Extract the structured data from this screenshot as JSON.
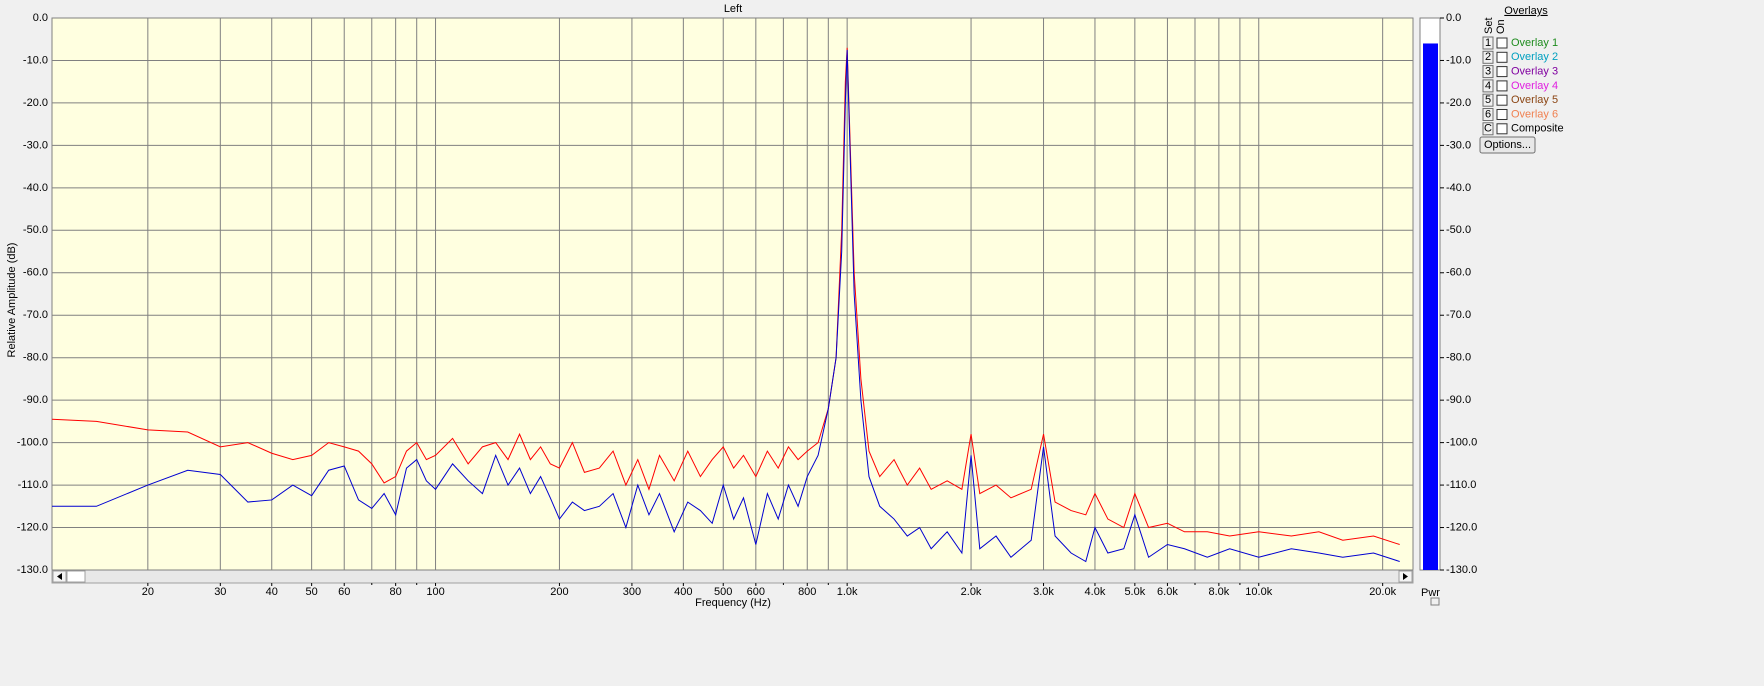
{
  "chart_data": {
    "type": "line",
    "title": "Left",
    "xlabel": "Frequency (Hz)",
    "ylabel": "Relative Amplitude (dB)",
    "xscale": "log",
    "grid": true,
    "xlim": [
      11.7,
      23700
    ],
    "ylim": [
      -130,
      0
    ],
    "yticks": [
      {
        "value": 0,
        "label": "0.0"
      },
      {
        "value": -10,
        "label": "-10.0"
      },
      {
        "value": -20,
        "label": "-20.0"
      },
      {
        "value": -30,
        "label": "-30.0"
      },
      {
        "value": -40,
        "label": "-40.0"
      },
      {
        "value": -50,
        "label": "-50.0"
      },
      {
        "value": -60,
        "label": "-60.0"
      },
      {
        "value": -70,
        "label": "-70.0"
      },
      {
        "value": -80,
        "label": "-80.0"
      },
      {
        "value": -90,
        "label": "-90.0"
      },
      {
        "value": -100,
        "label": "-100.0"
      },
      {
        "value": -110,
        "label": "-110.0"
      },
      {
        "value": -120,
        "label": "-120.0"
      },
      {
        "value": -130,
        "label": "-130.0"
      }
    ],
    "xticks": [
      20,
      30,
      40,
      50,
      60,
      80,
      100,
      200,
      300,
      400,
      500,
      600,
      800,
      {
        "value": 1000,
        "label": "1.0k"
      },
      {
        "value": 2000,
        "label": "2.0k"
      },
      {
        "value": 3000,
        "label": "3.0k"
      },
      {
        "value": 4000,
        "label": "4.0k"
      },
      {
        "value": 5000,
        "label": "5.0k"
      },
      {
        "value": 6000,
        "label": "6.0k"
      },
      {
        "value": 8000,
        "label": "8.0k"
      },
      {
        "value": 10000,
        "label": "10.0k"
      },
      {
        "value": 20000,
        "label": "20.0k"
      }
    ],
    "xminorticks": [
      70,
      90,
      700,
      900,
      7000,
      9000
    ],
    "x": [
      11.7,
      15,
      20,
      25,
      30,
      35,
      40,
      45,
      50,
      55,
      60,
      65,
      70,
      75,
      80,
      85,
      90,
      95,
      100,
      110,
      120,
      130,
      140,
      150,
      160,
      170,
      180,
      190,
      200,
      215,
      230,
      250,
      270,
      290,
      310,
      330,
      350,
      380,
      410,
      440,
      470,
      500,
      530,
      560,
      600,
      640,
      680,
      720,
      760,
      800,
      850,
      900,
      940,
      970,
      990,
      1000,
      1010,
      1040,
      1080,
      1130,
      1200,
      1300,
      1400,
      1500,
      1600,
      1750,
      1900,
      2000,
      2100,
      2300,
      2500,
      2800,
      3000,
      3200,
      3500,
      3800,
      4000,
      4300,
      4700,
      5000,
      5400,
      6000,
      6600,
      7500,
      8500,
      10000,
      12000,
      14000,
      16000,
      19000,
      22000
    ],
    "series": [
      {
        "name": "Red",
        "color": "#ff0000",
        "values": [
          -94.5,
          -95,
          -97,
          -97.5,
          -101,
          -100,
          -102.5,
          -104,
          -103,
          -100,
          -101,
          -102,
          -105,
          -109.5,
          -108,
          -102,
          -100,
          -104,
          -103,
          -99,
          -105,
          -101,
          -100,
          -104,
          -98,
          -104,
          -101,
          -105,
          -106,
          -100,
          -107,
          -106,
          -102,
          -110,
          -104,
          -111,
          -103,
          -109,
          -102,
          -108,
          -104,
          -101,
          -106,
          -103,
          -108,
          -102,
          -106,
          -101,
          -104,
          -102,
          -100,
          -92,
          -80,
          -50,
          -15,
          -7,
          -20,
          -60,
          -85,
          -102,
          -108,
          -104,
          -110,
          -106,
          -111,
          -109,
          -111,
          -98,
          -112,
          -110,
          -113,
          -111,
          -98,
          -114,
          -116,
          -117,
          -112,
          -118,
          -120,
          -112,
          -120,
          -119,
          -121,
          -121,
          -122,
          -121,
          -122,
          -121,
          -123,
          -122,
          -124
        ]
      },
      {
        "name": "Blue",
        "color": "#0000d0",
        "values": [
          -115,
          -115,
          -110,
          -106.5,
          -107.5,
          -114,
          -113.5,
          -110,
          -112.5,
          -106.5,
          -105.5,
          -113.5,
          -115.5,
          -112,
          -117,
          -106,
          -104,
          -109,
          -111,
          -105,
          -109,
          -112,
          -103,
          -110,
          -106,
          -112,
          -108,
          -113,
          -118,
          -114,
          -116,
          -115,
          -112,
          -120,
          -110,
          -117,
          -112,
          -121,
          -114,
          -116,
          -119,
          -110,
          -118,
          -113,
          -124,
          -112,
          -118,
          -110,
          -115,
          -108,
          -103,
          -92,
          -80,
          -55,
          -20,
          -7.5,
          -22,
          -65,
          -90,
          -108,
          -115,
          -118,
          -122,
          -120,
          -125,
          -121,
          -126,
          -103,
          -125,
          -122,
          -127,
          -123,
          -101,
          -122,
          -126,
          -128,
          -120,
          -126,
          -125,
          -117,
          -127,
          -124,
          -125,
          -127,
          -125,
          -127,
          -125,
          -126,
          -127,
          -126,
          -128
        ]
      }
    ]
  },
  "meter": {
    "label": "Pwr",
    "value": -6,
    "color": "#0000ff"
  },
  "overlays": {
    "title": "Overlays",
    "set_label": "Set",
    "on_label": "On",
    "rows": [
      {
        "set": "1",
        "name": "Overlay 1",
        "color": "#1e8c1e"
      },
      {
        "set": "2",
        "name": "Overlay 2",
        "color": "#00a0c0"
      },
      {
        "set": "3",
        "name": "Overlay 3",
        "color": "#8000a0"
      },
      {
        "set": "4",
        "name": "Overlay 4",
        "color": "#e020e0"
      },
      {
        "set": "5",
        "name": "Overlay 5",
        "color": "#8b4513"
      },
      {
        "set": "6",
        "name": "Overlay 6",
        "color": "#f08050"
      },
      {
        "set": "C",
        "name": "Composite",
        "color": "#000000"
      }
    ],
    "options": "Options..."
  }
}
